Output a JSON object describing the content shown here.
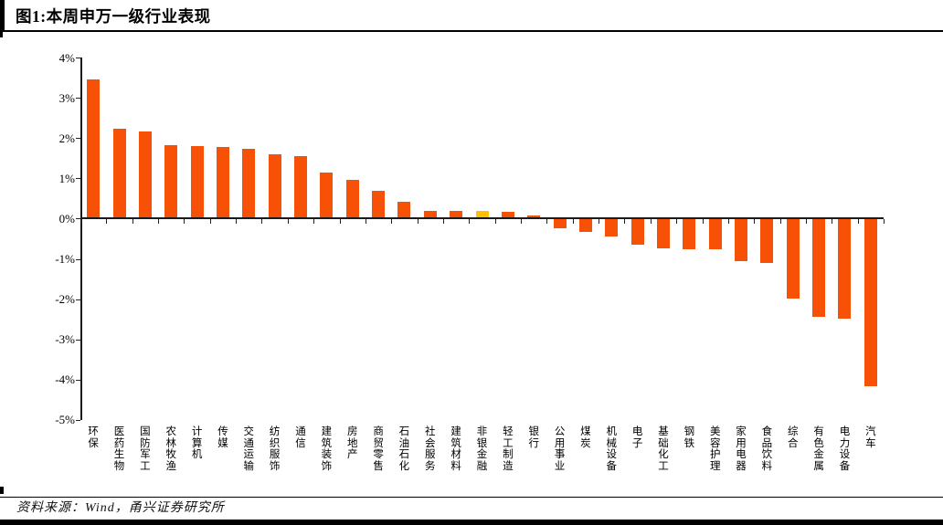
{
  "header": {
    "title": "图1:本周申万一级行业表现"
  },
  "footer": {
    "source": "资料来源：Wind，甬兴证券研究所"
  },
  "colors": {
    "bar": "#f75108",
    "highlight": "#ffc000",
    "axis": "#1a1a1a"
  },
  "chart_data": {
    "type": "bar",
    "title": "本周申万一级行业表现",
    "value_unit": "percent",
    "categories": [
      "环保",
      "医药生物",
      "国防军工",
      "农林牧渔",
      "计算机",
      "传媒",
      "交通运输",
      "纺织服饰",
      "通信",
      "建筑装饰",
      "房地产",
      "商贸零售",
      "石油石化",
      "社会服务",
      "建筑材料",
      "非银金融",
      "轻工制造",
      "银行",
      "公用事业",
      "煤炭",
      "机械设备",
      "电子",
      "基础化工",
      "钢铁",
      "美容护理",
      "家用电器",
      "食品饮料",
      "综合",
      "有色金属",
      "电力设备",
      "汽车"
    ],
    "values": [
      3.45,
      2.24,
      2.16,
      1.82,
      1.8,
      1.77,
      1.74,
      1.6,
      1.56,
      1.15,
      0.97,
      0.7,
      0.42,
      0.2,
      0.2,
      0.19,
      0.17,
      0.07,
      -0.23,
      -0.34,
      -0.45,
      -0.64,
      -0.73,
      -0.76,
      -0.77,
      -1.05,
      -1.1,
      -1.98,
      -2.45,
      -2.49,
      -4.17
    ],
    "highlight_index": 15,
    "highlight_category": "非银金融",
    "ylim": [
      -5,
      4
    ],
    "ytick_step": 1,
    "ytick_labels": [
      "4%",
      "3%",
      "2%",
      "1%",
      "0%",
      "-1%",
      "-2%",
      "-3%",
      "-4%",
      "-5%"
    ],
    "grid": false,
    "legend": "none"
  }
}
